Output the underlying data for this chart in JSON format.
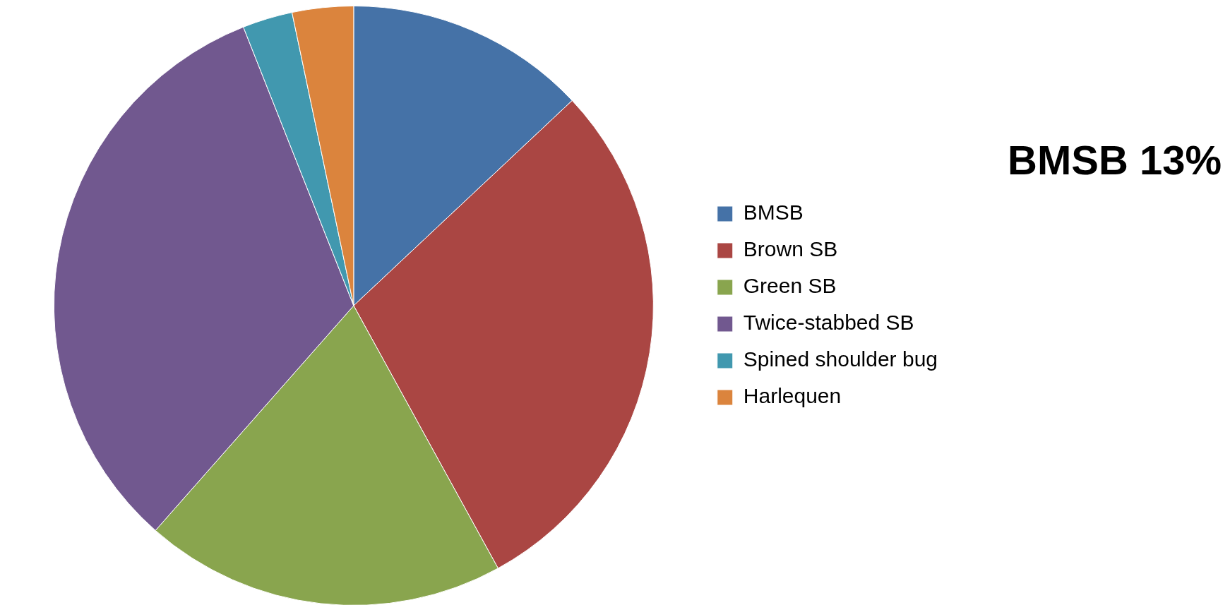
{
  "chart_data": {
    "type": "pie",
    "title": "BMSB 13%",
    "categories": [
      "BMSB",
      "Brown SB",
      "Green SB",
      "Twice-stabbed SB",
      "Spined shoulder bug",
      "Harlequen"
    ],
    "values": [
      13,
      29,
      19.5,
      32.5,
      2.7,
      3.3
    ],
    "colors": [
      "#4572a7",
      "#aa4643",
      "#89a54e",
      "#71588f",
      "#4198af",
      "#db843d"
    ],
    "legend": "right"
  }
}
